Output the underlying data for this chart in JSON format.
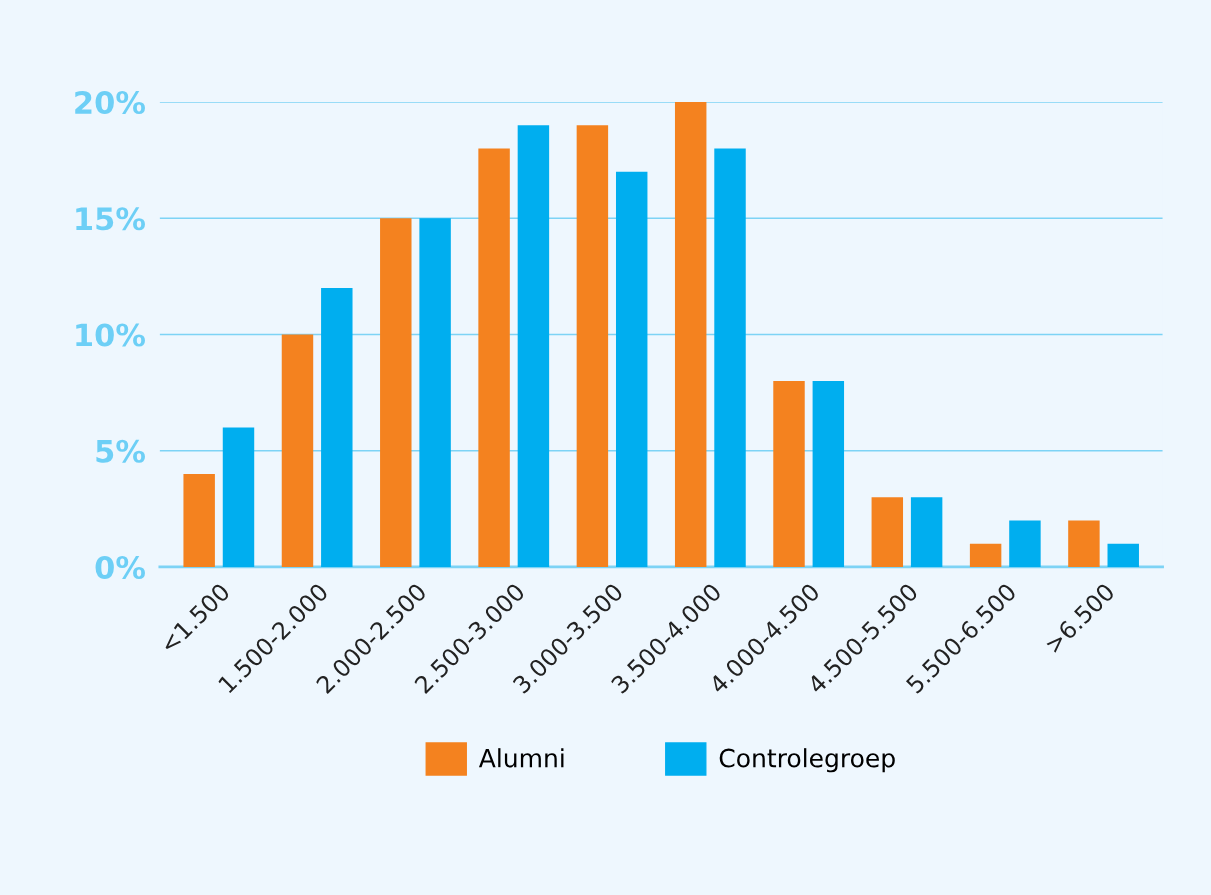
{
  "chart_data": {
    "type": "bar",
    "categories": [
      "<1.500",
      "1.500-2.000",
      "2.000-2.500",
      "2.500-3.000",
      "3.000-3.500",
      "3.500-4.000",
      "4.000-4.500",
      "4.500-5.500",
      "5.500-6.500",
      ">6.500"
    ],
    "series": [
      {
        "name": "Alumni",
        "color": "#f4821f",
        "values": [
          4,
          10,
          15,
          18,
          19,
          20,
          8,
          3,
          1,
          2
        ]
      },
      {
        "name": "Controlegroep",
        "color": "#00aeef",
        "values": [
          6,
          12,
          15,
          19,
          17,
          18,
          8,
          3,
          2,
          1
        ]
      }
    ],
    "ylim": [
      0,
      20
    ],
    "yticks": [
      {
        "value": 0,
        "label": "0%"
      },
      {
        "value": 5,
        "label": "5%"
      },
      {
        "value": 10,
        "label": "10%"
      },
      {
        "value": 15,
        "label": "15%"
      },
      {
        "value": 20,
        "label": "20%"
      }
    ],
    "grid": "y",
    "legend": "bottom"
  }
}
